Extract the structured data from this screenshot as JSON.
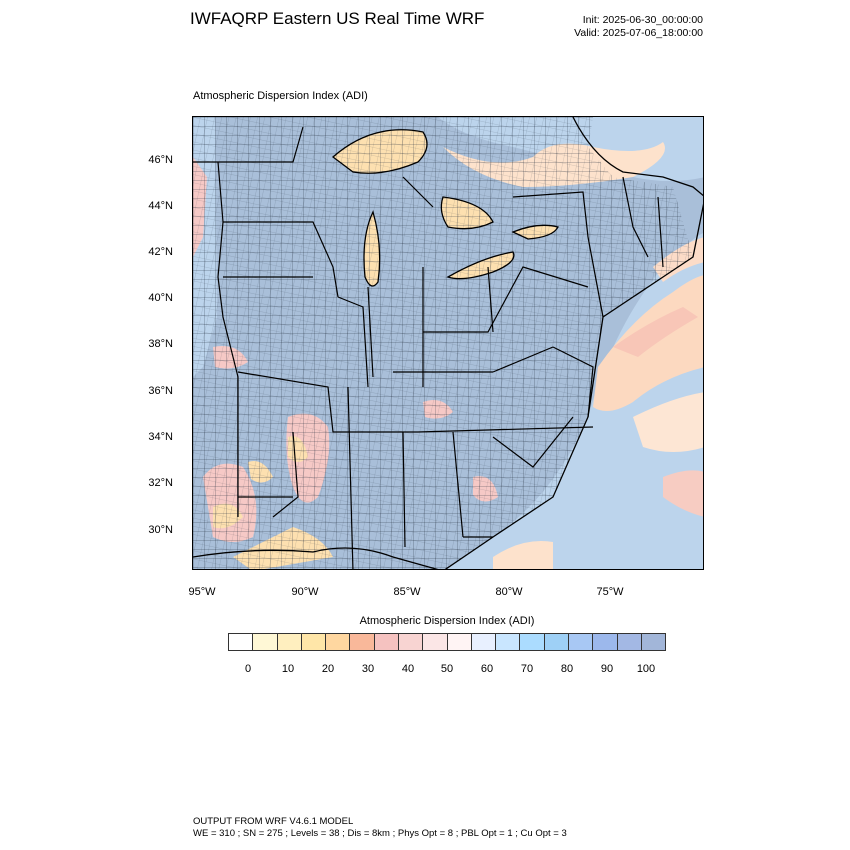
{
  "header": {
    "title": "IWFAQRP Eastern US Real Time WRF",
    "init": "Init: 2025-06-30_00:00:00",
    "valid": "Valid: 2025-07-06_18:00:00"
  },
  "panel": {
    "label": "Atmospheric Dispersion Index   (ADI)"
  },
  "map": {
    "lat_labels": [
      "46°N",
      "44°N",
      "42°N",
      "40°N",
      "38°N",
      "36°N",
      "34°N",
      "32°N",
      "30°N"
    ],
    "lon_labels": [
      "95°W",
      "90°W",
      "85°W",
      "80°W",
      "75°W"
    ],
    "colors": {
      "land_fill": "#a9bfd9",
      "boundary_line": "#000000",
      "low_values": "#fde0b0",
      "mid_values": "#f6c9c6",
      "high_values": "#9bb8e0"
    }
  },
  "colorbar": {
    "title": "Atmospheric Dispersion Index  (ADI)",
    "labels": [
      "0",
      "10",
      "20",
      "30",
      "40",
      "50",
      "60",
      "70",
      "80",
      "90",
      "100"
    ],
    "colors": [
      "#ffffff",
      "#fff8d6",
      "#ffefbf",
      "#ffe6a8",
      "#ffd7a0",
      "#f9b89a",
      "#f5c2c0",
      "#f8d4d2",
      "#fbe6e6",
      "#fff4f4",
      "#e8f0ff",
      "#c9e6ff",
      "#abdcff",
      "#9ed0f6",
      "#a8c8f4",
      "#9cb8ec",
      "#a3b8e4",
      "#a2b6d9"
    ]
  },
  "footer": {
    "line1": "OUTPUT FROM WRF V4.6.1 MODEL",
    "line2": "WE = 310 ; SN = 275 ; Levels = 38 ; Dis = 8km ; Phys Opt = 8 ; PBL Opt = 1 ; Cu Opt = 3"
  }
}
